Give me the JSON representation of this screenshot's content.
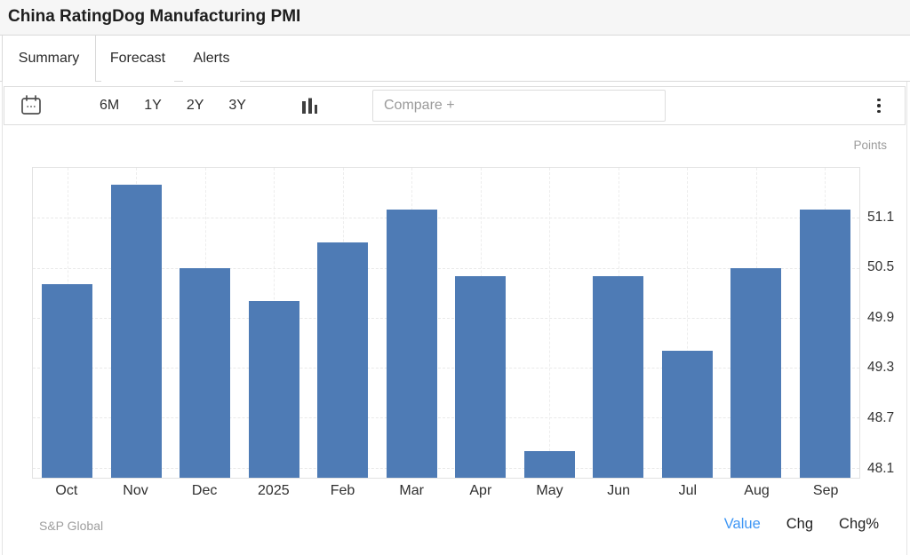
{
  "header": {
    "title": "China RatingDog Manufacturing PMI"
  },
  "tabs": [
    {
      "label": "Summary",
      "active": true
    },
    {
      "label": "Forecast",
      "active": false
    },
    {
      "label": "Alerts",
      "active": false
    }
  ],
  "toolbar": {
    "ranges": [
      "6M",
      "1Y",
      "2Y",
      "3Y"
    ],
    "compare_placeholder": "Compare +",
    "icons": {
      "left": "calendar-icon",
      "chart_type": "column-chart-icon",
      "right": "kebab-menu-icon"
    }
  },
  "chart_data": {
    "type": "bar",
    "title": "China RatingDog Manufacturing PMI",
    "unit_label": "Points",
    "categories": [
      "Oct",
      "Nov",
      "Dec",
      "2025",
      "Feb",
      "Mar",
      "Apr",
      "May",
      "Jun",
      "Jul",
      "Aug",
      "Sep"
    ],
    "values": [
      50.3,
      51.5,
      50.5,
      50.1,
      50.8,
      51.2,
      50.4,
      48.3,
      50.4,
      49.5,
      50.5,
      51.2
    ],
    "yticks": [
      51.1,
      50.5,
      49.9,
      49.3,
      48.7,
      48.1
    ],
    "ylim": [
      47.98,
      51.7
    ],
    "xlabel": "",
    "ylabel": "Points",
    "grid": true,
    "legend": "none",
    "axis_side": "right",
    "bar_color": "#4e7bb5"
  },
  "footer": {
    "source": "S&P Global",
    "modes": [
      {
        "label": "Value",
        "active": true
      },
      {
        "label": "Chg",
        "active": false
      },
      {
        "label": "Chg%",
        "active": false
      }
    ]
  },
  "colors": {
    "bar": "#4e7bb5",
    "mode_active": "#3e96f5",
    "header_bg": "#f6f6f6",
    "border": "#d9d9d9",
    "muted_text": "#9b9b9b",
    "text": "#2d2d2d"
  }
}
